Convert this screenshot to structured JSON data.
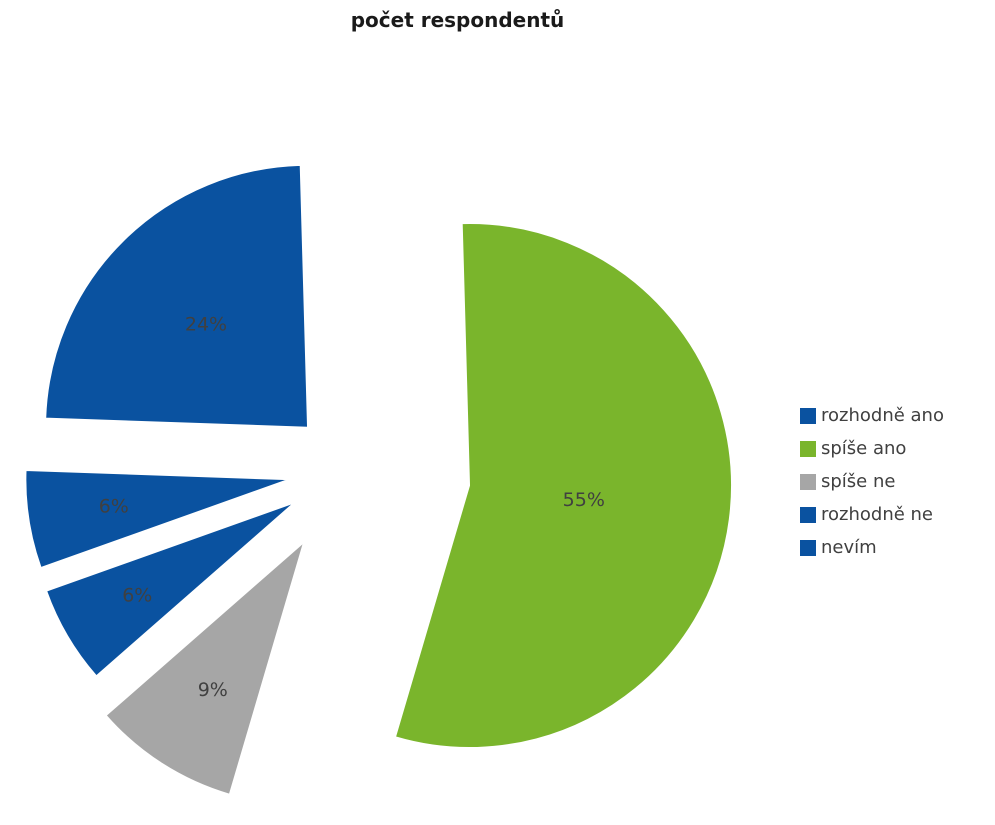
{
  "chart_data": {
    "type": "pie",
    "title": "počet respondentů",
    "exploded": true,
    "legend_position": "right",
    "slices": [
      {
        "label": "rozhodně ano",
        "value": 24,
        "data_label": "24%",
        "color": "#0a52a0"
      },
      {
        "label": "spíše ano",
        "value": 55,
        "data_label": "55%",
        "color": "#7ab52c"
      },
      {
        "label": "spíše ne",
        "value": 9,
        "data_label": "9%",
        "color": "#a6a6a6"
      },
      {
        "label": "rozhodně ne",
        "value": 6,
        "data_label": "6%",
        "color": "#0a52a0"
      },
      {
        "label": "nevím",
        "value": 6,
        "data_label": "6%",
        "color": "#0a52a0"
      }
    ]
  }
}
